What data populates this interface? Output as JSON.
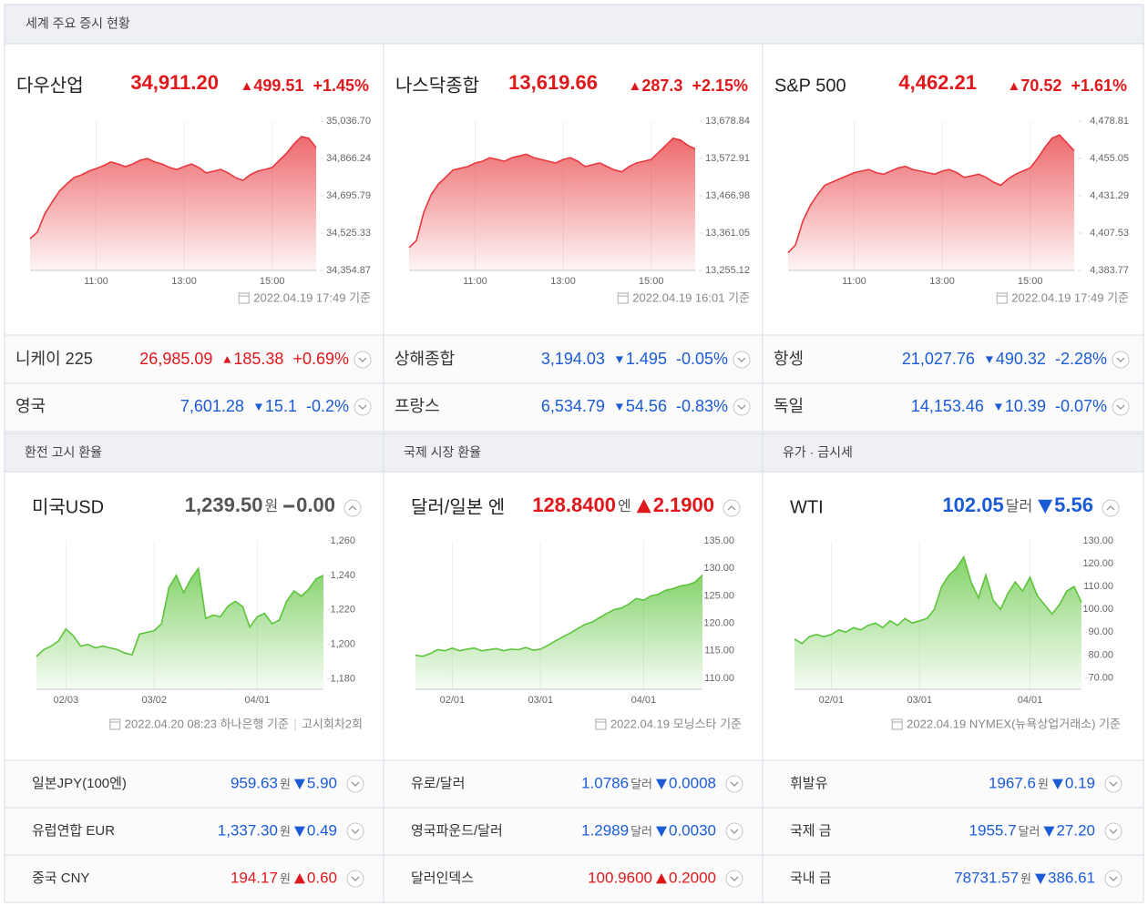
{
  "stock_section": {
    "title": "세계 주요 증시 현황",
    "cards": [
      {
        "name": "다우산업",
        "price": "34,911.20",
        "change": "499.51",
        "rate": "+1.45%",
        "direction": "up",
        "timestamp": "2022.04.19 17:49 기준",
        "chart": {
          "type": "area",
          "color": "#e8383d",
          "grid": true,
          "ylim": [
            34354.87,
            35036.7
          ],
          "yticks": [
            {
              "value": 35036.7,
              "label": "35,036.70"
            },
            {
              "value": 34866.24,
              "label": "34,866.24"
            },
            {
              "value": 34695.79,
              "label": "34,695.79"
            },
            {
              "value": 34525.33,
              "label": "34,525.33"
            },
            {
              "value": 34354.87,
              "label": "34,354.87"
            }
          ],
          "xticks": [
            {
              "value": 9,
              "label": "11:00"
            },
            {
              "value": 21,
              "label": "13:00"
            },
            {
              "value": 33,
              "label": "15:00"
            }
          ],
          "values": [
            34500,
            34530,
            34613,
            34667,
            34717,
            34750,
            34779,
            34791,
            34808,
            34820,
            34833,
            34850,
            34841,
            34829,
            34841,
            34858,
            34866,
            34850,
            34841,
            34825,
            34816,
            34829,
            34841,
            34825,
            34800,
            34808,
            34816,
            34800,
            34779,
            34766,
            34791,
            34808,
            34816,
            34825,
            34858,
            34891,
            34933,
            34966,
            34958,
            34916
          ]
        }
      },
      {
        "name": "나스닥종합",
        "price": "13,619.66",
        "change": "287.3",
        "rate": "+2.15%",
        "direction": "up",
        "timestamp": "2022.04.19 16:01 기준",
        "chart": {
          "type": "area",
          "color": "#e8383d",
          "grid": true,
          "ylim": [
            13255.12,
            13678.84
          ],
          "yticks": [
            {
              "value": 13678.84,
              "label": "13,678.84"
            },
            {
              "value": 13572.91,
              "label": "13,572.91"
            },
            {
              "value": 13466.98,
              "label": "13,466.98"
            },
            {
              "value": 13361.05,
              "label": "13,361.05"
            },
            {
              "value": 13255.12,
              "label": "13,255.12"
            }
          ],
          "xticks": [
            {
              "value": 9,
              "label": "11:00"
            },
            {
              "value": 21,
              "label": "13:00"
            },
            {
              "value": 33,
              "label": "15:00"
            }
          ],
          "values": [
            13320,
            13340,
            13420,
            13470,
            13500,
            13520,
            13540,
            13545,
            13550,
            13560,
            13565,
            13575,
            13570,
            13565,
            13575,
            13580,
            13585,
            13575,
            13570,
            13565,
            13560,
            13570,
            13575,
            13565,
            13550,
            13555,
            13560,
            13550,
            13540,
            13535,
            13550,
            13560,
            13565,
            13570,
            13590,
            13610,
            13630,
            13625,
            13610,
            13600
          ]
        }
      },
      {
        "name": "S&P 500",
        "price": "4,462.21",
        "change": "70.52",
        "rate": "+1.61%",
        "direction": "up",
        "timestamp": "2022.04.19 17:49 기준",
        "chart": {
          "type": "area",
          "color": "#e8383d",
          "grid": true,
          "ylim": [
            4383.77,
            4478.81
          ],
          "yticks": [
            {
              "value": 4478.81,
              "label": "4,478.81"
            },
            {
              "value": 4455.05,
              "label": "4,455.05"
            },
            {
              "value": 4431.29,
              "label": "4,431.29"
            },
            {
              "value": 4407.53,
              "label": "4,407.53"
            },
            {
              "value": 4383.77,
              "label": "4,383.77"
            }
          ],
          "xticks": [
            {
              "value": 9,
              "label": "11:00"
            },
            {
              "value": 21,
              "label": "13:00"
            },
            {
              "value": 33,
              "label": "15:00"
            }
          ],
          "values": [
            4395,
            4400,
            4415,
            4425,
            4432,
            4438,
            4440,
            4442,
            4444,
            4446,
            4447,
            4448,
            4446,
            4445,
            4447,
            4449,
            4450,
            4448,
            4447,
            4446,
            4445,
            4447,
            4448,
            4446,
            4443,
            4444,
            4445,
            4443,
            4440,
            4438,
            4442,
            4445,
            4447,
            4449,
            4455,
            4462,
            4468,
            4470,
            4465,
            4460
          ]
        }
      }
    ],
    "quotes": [
      {
        "name": "니케이 225",
        "price": "26,985.09",
        "change": "185.38",
        "rate": "+0.69%",
        "direction": "up"
      },
      {
        "name": "상해종합",
        "price": "3,194.03",
        "change": "1.495",
        "rate": "-0.05%",
        "direction": "down"
      },
      {
        "name": "항셍",
        "price": "21,027.76",
        "change": "490.32",
        "rate": "-2.28%",
        "direction": "down"
      },
      {
        "name": "영국",
        "price": "7,601.28",
        "change": "15.1",
        "rate": "-0.2%",
        "direction": "down"
      },
      {
        "name": "프랑스",
        "price": "6,534.79",
        "change": "54.56",
        "rate": "-0.83%",
        "direction": "down"
      },
      {
        "name": "독일",
        "price": "14,153.46",
        "change": "10.39",
        "rate": "-0.07%",
        "direction": "down"
      }
    ]
  },
  "fx_sections": [
    {
      "title": "환전 고시 환율",
      "card": {
        "name": "미국USD",
        "price": "1,239.50",
        "unit": "원",
        "change": "0.00",
        "direction": "flat",
        "timestamp": "2022.04.20 08:23 하나은행 기준",
        "note": "고시회차2회",
        "chart": {
          "type": "area",
          "color": "#5cc43a",
          "grid": true,
          "ylim": [
            1174,
            1260
          ],
          "yticks": [
            {
              "value": 1260,
              "label": "1,260"
            },
            {
              "value": 1240,
              "label": "1,240"
            },
            {
              "value": 1220,
              "label": "1,220"
            },
            {
              "value": 1200,
              "label": "1,200"
            },
            {
              "value": 1180,
              "label": "1,180"
            }
          ],
          "xticks": [
            {
              "value": 4,
              "label": "02/03"
            },
            {
              "value": 16,
              "label": "03/02"
            },
            {
              "value": 30,
              "label": "04/01"
            }
          ],
          "values": [
            1193,
            1197,
            1199,
            1202,
            1209,
            1205,
            1199,
            1200,
            1198,
            1199,
            1198,
            1197,
            1195,
            1194,
            1206,
            1207,
            1208,
            1212,
            1233,
            1240,
            1230,
            1238,
            1244,
            1215,
            1217,
            1216,
            1222,
            1225,
            1222,
            1210,
            1216,
            1218,
            1212,
            1214,
            1225,
            1231,
            1228,
            1232,
            1238,
            1240
          ]
        }
      },
      "quotes": [
        {
          "name": "일본JPY(100엔)",
          "price": "959.63",
          "unit": "원",
          "change": "5.90",
          "direction": "down"
        },
        {
          "name": "유럽연합 EUR",
          "price": "1,337.30",
          "unit": "원",
          "change": "0.49",
          "direction": "down"
        },
        {
          "name": "중국 CNY",
          "price": "194.17",
          "unit": "원",
          "change": "0.60",
          "direction": "up"
        }
      ]
    },
    {
      "title": "국제 시장 환율",
      "card": {
        "name": "달러/일본 엔",
        "price": "128.8400",
        "unit": "엔",
        "change": "2.1900",
        "direction": "up",
        "timestamp": "2022.04.19 모닝스타 기준",
        "chart": {
          "type": "area",
          "color": "#5cc43a",
          "grid": true,
          "ylim": [
            108,
            135
          ],
          "yticks": [
            {
              "value": 135,
              "label": "135.00"
            },
            {
              "value": 130,
              "label": "130.00"
            },
            {
              "value": 125,
              "label": "125.00"
            },
            {
              "value": 120,
              "label": "120.00"
            },
            {
              "value": 115,
              "label": "115.00"
            },
            {
              "value": 110,
              "label": "110.00"
            }
          ],
          "xticks": [
            {
              "value": 5,
              "label": "02/01"
            },
            {
              "value": 17,
              "label": "03/01"
            },
            {
              "value": 31,
              "label": "04/01"
            }
          ],
          "values": [
            114.2,
            114.0,
            114.5,
            115.2,
            115.0,
            115.5,
            115.0,
            115.3,
            115.5,
            115.0,
            115.2,
            115.4,
            115.0,
            115.3,
            115.2,
            115.6,
            115.1,
            115.3,
            116.0,
            116.8,
            117.5,
            118.2,
            119.0,
            119.8,
            120.2,
            121.0,
            121.8,
            122.5,
            122.8,
            123.5,
            124.5,
            124.2,
            125.0,
            125.3,
            126.0,
            126.3,
            126.8,
            127.0,
            127.5,
            128.8
          ]
        }
      },
      "quotes": [
        {
          "name": "유로/달러",
          "price": "1.0786",
          "unit": "달러",
          "change": "0.0008",
          "direction": "down"
        },
        {
          "name": "영국파운드/달러",
          "price": "1.2989",
          "unit": "달러",
          "change": "0.0030",
          "direction": "down"
        },
        {
          "name": "달러인덱스",
          "price": "100.9600",
          "change": "0.2000",
          "direction": "up"
        }
      ]
    },
    {
      "title": "유가 · 금시세",
      "card": {
        "name": "WTI",
        "price": "102.05",
        "unit": "달러",
        "change": "5.56",
        "direction": "down",
        "timestamp": "2022.04.19 NYMEX(뉴욕상업거래소) 기준",
        "chart": {
          "type": "area",
          "color": "#5cc43a",
          "grid": true,
          "ylim": [
            65,
            130
          ],
          "yticks": [
            {
              "value": 130,
              "label": "130.00"
            },
            {
              "value": 120,
              "label": "120.00"
            },
            {
              "value": 110,
              "label": "110.00"
            },
            {
              "value": 100,
              "label": "100.00"
            },
            {
              "value": 90,
              "label": "90.00"
            },
            {
              "value": 80,
              "label": "80.00"
            },
            {
              "value": 70,
              "label": "70.00"
            }
          ],
          "xticks": [
            {
              "value": 5,
              "label": "02/01"
            },
            {
              "value": 17,
              "label": "03/01"
            },
            {
              "value": 32,
              "label": "04/01"
            }
          ],
          "values": [
            87,
            85,
            88,
            89,
            88,
            89,
            91,
            90,
            92,
            91,
            93,
            94,
            92,
            95,
            93,
            96,
            94,
            95,
            96,
            100,
            110,
            115,
            118,
            123,
            112,
            105,
            115,
            104,
            100,
            107,
            112,
            108,
            114,
            106,
            102,
            98,
            102,
            108,
            110,
            103
          ]
        }
      },
      "quotes": [
        {
          "name": "휘발유",
          "price": "1967.6",
          "unit": "원",
          "change": "0.19",
          "direction": "down"
        },
        {
          "name": "국제 금",
          "price": "1955.7",
          "unit": "달러",
          "change": "27.20",
          "direction": "down"
        },
        {
          "name": "국내 금",
          "price": "78731.57",
          "unit": "원",
          "change": "386.61",
          "direction": "down"
        }
      ]
    }
  ]
}
